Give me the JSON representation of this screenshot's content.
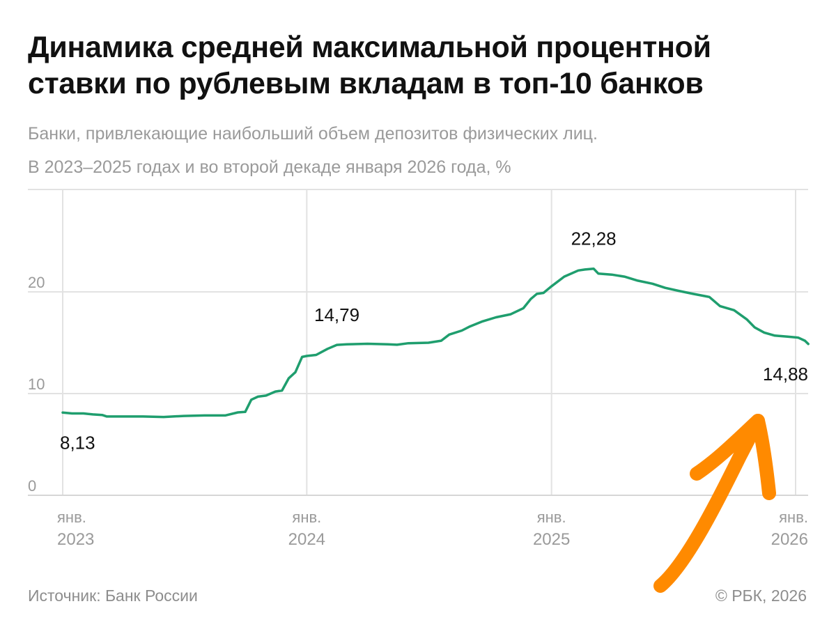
{
  "title": "Динамика средней максимальной процентной ставки по рублевым вкладам в топ-10 банков",
  "subtitle_lines": [
    "Банки, привлекающие наибольший объем депозитов физических лиц.",
    "В 2023–2025 годах и во второй декаде января 2026 года, %"
  ],
  "source": "Источник: Банк России",
  "copyright": "© РБК, 2026",
  "colors": {
    "line": "#1f9e6e",
    "grid": "#e2e2e2",
    "annotation": "#ff8a00"
  },
  "chart_data": {
    "type": "line",
    "x_unit": "date",
    "ylim": [
      0,
      25
    ],
    "y_ticks": [
      0,
      10,
      20
    ],
    "x_ticks": [
      {
        "month": "янв.",
        "year": "2023",
        "x": "2023-01-01"
      },
      {
        "month": "янв.",
        "year": "2024",
        "x": "2024-01-01"
      },
      {
        "month": "янв.",
        "year": "2025",
        "x": "2025-01-01"
      },
      {
        "month": "янв.",
        "year": "2026",
        "x": "2026-01-01"
      }
    ],
    "grid": true,
    "series": [
      {
        "points": [
          [
            "2023-01-01",
            8.13
          ],
          [
            "2023-01-15",
            8.05
          ],
          [
            "2023-02-01",
            8.05
          ],
          [
            "2023-02-15",
            7.95
          ],
          [
            "2023-03-01",
            7.9
          ],
          [
            "2023-03-08",
            7.75
          ],
          [
            "2023-04-01",
            7.75
          ],
          [
            "2023-05-01",
            7.75
          ],
          [
            "2023-06-01",
            7.7
          ],
          [
            "2023-07-01",
            7.8
          ],
          [
            "2023-08-01",
            7.85
          ],
          [
            "2023-09-01",
            7.85
          ],
          [
            "2023-09-20",
            8.15
          ],
          [
            "2023-10-01",
            8.2
          ],
          [
            "2023-10-10",
            9.4
          ],
          [
            "2023-10-20",
            9.7
          ],
          [
            "2023-11-01",
            9.8
          ],
          [
            "2023-11-15",
            10.2
          ],
          [
            "2023-11-25",
            10.3
          ],
          [
            "2023-12-05",
            11.5
          ],
          [
            "2023-12-15",
            12.1
          ],
          [
            "2023-12-25",
            13.6
          ],
          [
            "2024-01-01",
            13.7
          ],
          [
            "2024-01-15",
            13.8
          ],
          [
            "2024-02-01",
            14.4
          ],
          [
            "2024-02-15",
            14.79
          ],
          [
            "2024-03-01",
            14.85
          ],
          [
            "2024-04-01",
            14.9
          ],
          [
            "2024-05-01",
            14.85
          ],
          [
            "2024-05-15",
            14.8
          ],
          [
            "2024-06-01",
            14.95
          ],
          [
            "2024-07-01",
            15.0
          ],
          [
            "2024-07-20",
            15.2
          ],
          [
            "2024-08-01",
            15.8
          ],
          [
            "2024-08-20",
            16.2
          ],
          [
            "2024-09-01",
            16.6
          ],
          [
            "2024-09-20",
            17.1
          ],
          [
            "2024-10-10",
            17.5
          ],
          [
            "2024-11-01",
            17.8
          ],
          [
            "2024-11-20",
            18.4
          ],
          [
            "2024-12-01",
            19.3
          ],
          [
            "2024-12-10",
            19.8
          ],
          [
            "2024-12-20",
            19.9
          ],
          [
            "2024-12-31",
            20.5
          ],
          [
            "2025-01-20",
            21.5
          ],
          [
            "2025-02-10",
            22.1
          ],
          [
            "2025-02-20",
            22.2
          ],
          [
            "2025-03-05",
            22.28
          ],
          [
            "2025-03-12",
            21.8
          ],
          [
            "2025-04-01",
            21.7
          ],
          [
            "2025-04-20",
            21.5
          ],
          [
            "2025-05-10",
            21.1
          ],
          [
            "2025-06-01",
            20.8
          ],
          [
            "2025-06-20",
            20.4
          ],
          [
            "2025-07-10",
            20.1
          ],
          [
            "2025-08-01",
            19.8
          ],
          [
            "2025-08-25",
            19.5
          ],
          [
            "2025-09-10",
            18.6
          ],
          [
            "2025-10-01",
            18.2
          ],
          [
            "2025-10-20",
            17.3
          ],
          [
            "2025-11-01",
            16.5
          ],
          [
            "2025-11-15",
            16.0
          ],
          [
            "2025-12-01",
            15.7
          ],
          [
            "2025-12-20",
            15.6
          ],
          [
            "2026-01-05",
            15.5
          ],
          [
            "2026-01-15",
            15.2
          ],
          [
            "2026-01-20",
            14.88
          ]
        ]
      }
    ],
    "labels": [
      {
        "text": "8,13",
        "x": "2023-01-01",
        "y": 8.13,
        "placement": "below"
      },
      {
        "text": "14,79",
        "x": "2024-02-15",
        "y": 14.79,
        "placement": "above"
      },
      {
        "text": "22,28",
        "x": "2025-03-05",
        "y": 22.28,
        "placement": "above"
      },
      {
        "text": "14,88",
        "x": "2026-01-20",
        "y": 14.88,
        "placement": "below"
      }
    ]
  }
}
